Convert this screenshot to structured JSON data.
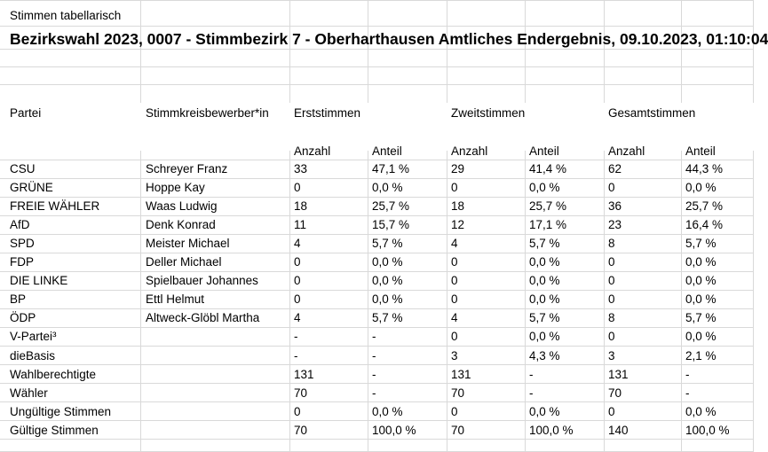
{
  "sheet": {
    "caption": "Stimmen tabellarisch",
    "title": "Bezirkswahl 2023, 0007 - Stimmbezirk 7 - Oberharthausen Amtliches Endergebnis, 09.10.2023, 01:10:04"
  },
  "headers": {
    "partei": "Partei",
    "kandidat": "Stimmkreisbewerber*in",
    "erst": "Erststimmen",
    "zweit": "Zweitstimmen",
    "gesamt": "Gesamtstimmen",
    "anzahl": "Anzahl",
    "anteil": "Anteil"
  },
  "rows": [
    {
      "partei": "CSU",
      "kandidat": "Schreyer Franz",
      "e_anz": "33",
      "e_ant": "47,1 %",
      "z_anz": "29",
      "z_ant": "41,4 %",
      "g_anz": "62",
      "g_ant": "44,3 %"
    },
    {
      "partei": "GRÜNE",
      "kandidat": "Hoppe Kay",
      "e_anz": "0",
      "e_ant": "0,0 %",
      "z_anz": "0",
      "z_ant": "0,0 %",
      "g_anz": "0",
      "g_ant": "0,0 %"
    },
    {
      "partei": "FREIE WÄHLER",
      "kandidat": "Waas Ludwig",
      "e_anz": "18",
      "e_ant": "25,7 %",
      "z_anz": "18",
      "z_ant": "25,7 %",
      "g_anz": "36",
      "g_ant": "25,7 %"
    },
    {
      "partei": "AfD",
      "kandidat": "Denk Konrad",
      "e_anz": "11",
      "e_ant": "15,7 %",
      "z_anz": "12",
      "z_ant": "17,1 %",
      "g_anz": "23",
      "g_ant": "16,4 %"
    },
    {
      "partei": "SPD",
      "kandidat": "Meister Michael",
      "e_anz": "4",
      "e_ant": "5,7 %",
      "z_anz": "4",
      "z_ant": "5,7 %",
      "g_anz": "8",
      "g_ant": "5,7 %"
    },
    {
      "partei": "FDP",
      "kandidat": "Deller Michael",
      "e_anz": "0",
      "e_ant": "0,0 %",
      "z_anz": "0",
      "z_ant": "0,0 %",
      "g_anz": "0",
      "g_ant": "0,0 %"
    },
    {
      "partei": "DIE LINKE",
      "kandidat": "Spielbauer Johannes",
      "e_anz": "0",
      "e_ant": "0,0 %",
      "z_anz": "0",
      "z_ant": "0,0 %",
      "g_anz": "0",
      "g_ant": "0,0 %"
    },
    {
      "partei": "BP",
      "kandidat": "Ettl Helmut",
      "e_anz": "0",
      "e_ant": "0,0 %",
      "z_anz": "0",
      "z_ant": "0,0 %",
      "g_anz": "0",
      "g_ant": "0,0 %"
    },
    {
      "partei": "ÖDP",
      "kandidat": "Altweck-Glöbl Martha",
      "e_anz": "4",
      "e_ant": "5,7 %",
      "z_anz": "4",
      "z_ant": "5,7 %",
      "g_anz": "8",
      "g_ant": "5,7 %"
    },
    {
      "partei": "V-Partei³",
      "kandidat": "",
      "e_anz": "-",
      "e_ant": "-",
      "z_anz": "0",
      "z_ant": "0,0 %",
      "g_anz": "0",
      "g_ant": "0,0 %"
    },
    {
      "partei": "dieBasis",
      "kandidat": "",
      "e_anz": "-",
      "e_ant": "-",
      "z_anz": "3",
      "z_ant": "4,3 %",
      "g_anz": "3",
      "g_ant": "2,1 %"
    },
    {
      "partei": "Wahlberechtigte",
      "kandidat": "",
      "e_anz": "131",
      "e_ant": "-",
      "z_anz": "131",
      "z_ant": "-",
      "g_anz": "131",
      "g_ant": "-"
    },
    {
      "partei": "Wähler",
      "kandidat": "",
      "e_anz": "70",
      "e_ant": "-",
      "z_anz": "70",
      "z_ant": "-",
      "g_anz": "70",
      "g_ant": "-"
    },
    {
      "partei": "Ungültige Stimmen",
      "kandidat": "",
      "e_anz": "0",
      "e_ant": "0,0 %",
      "z_anz": "0",
      "z_ant": "0,0 %",
      "g_anz": "0",
      "g_ant": "0,0 %"
    },
    {
      "partei": "Gültige Stimmen",
      "kandidat": "",
      "e_anz": "70",
      "e_ant": "100,0 %",
      "z_anz": "70",
      "z_ant": "100,0 %",
      "g_anz": "140",
      "g_ant": "100,0 %"
    }
  ]
}
